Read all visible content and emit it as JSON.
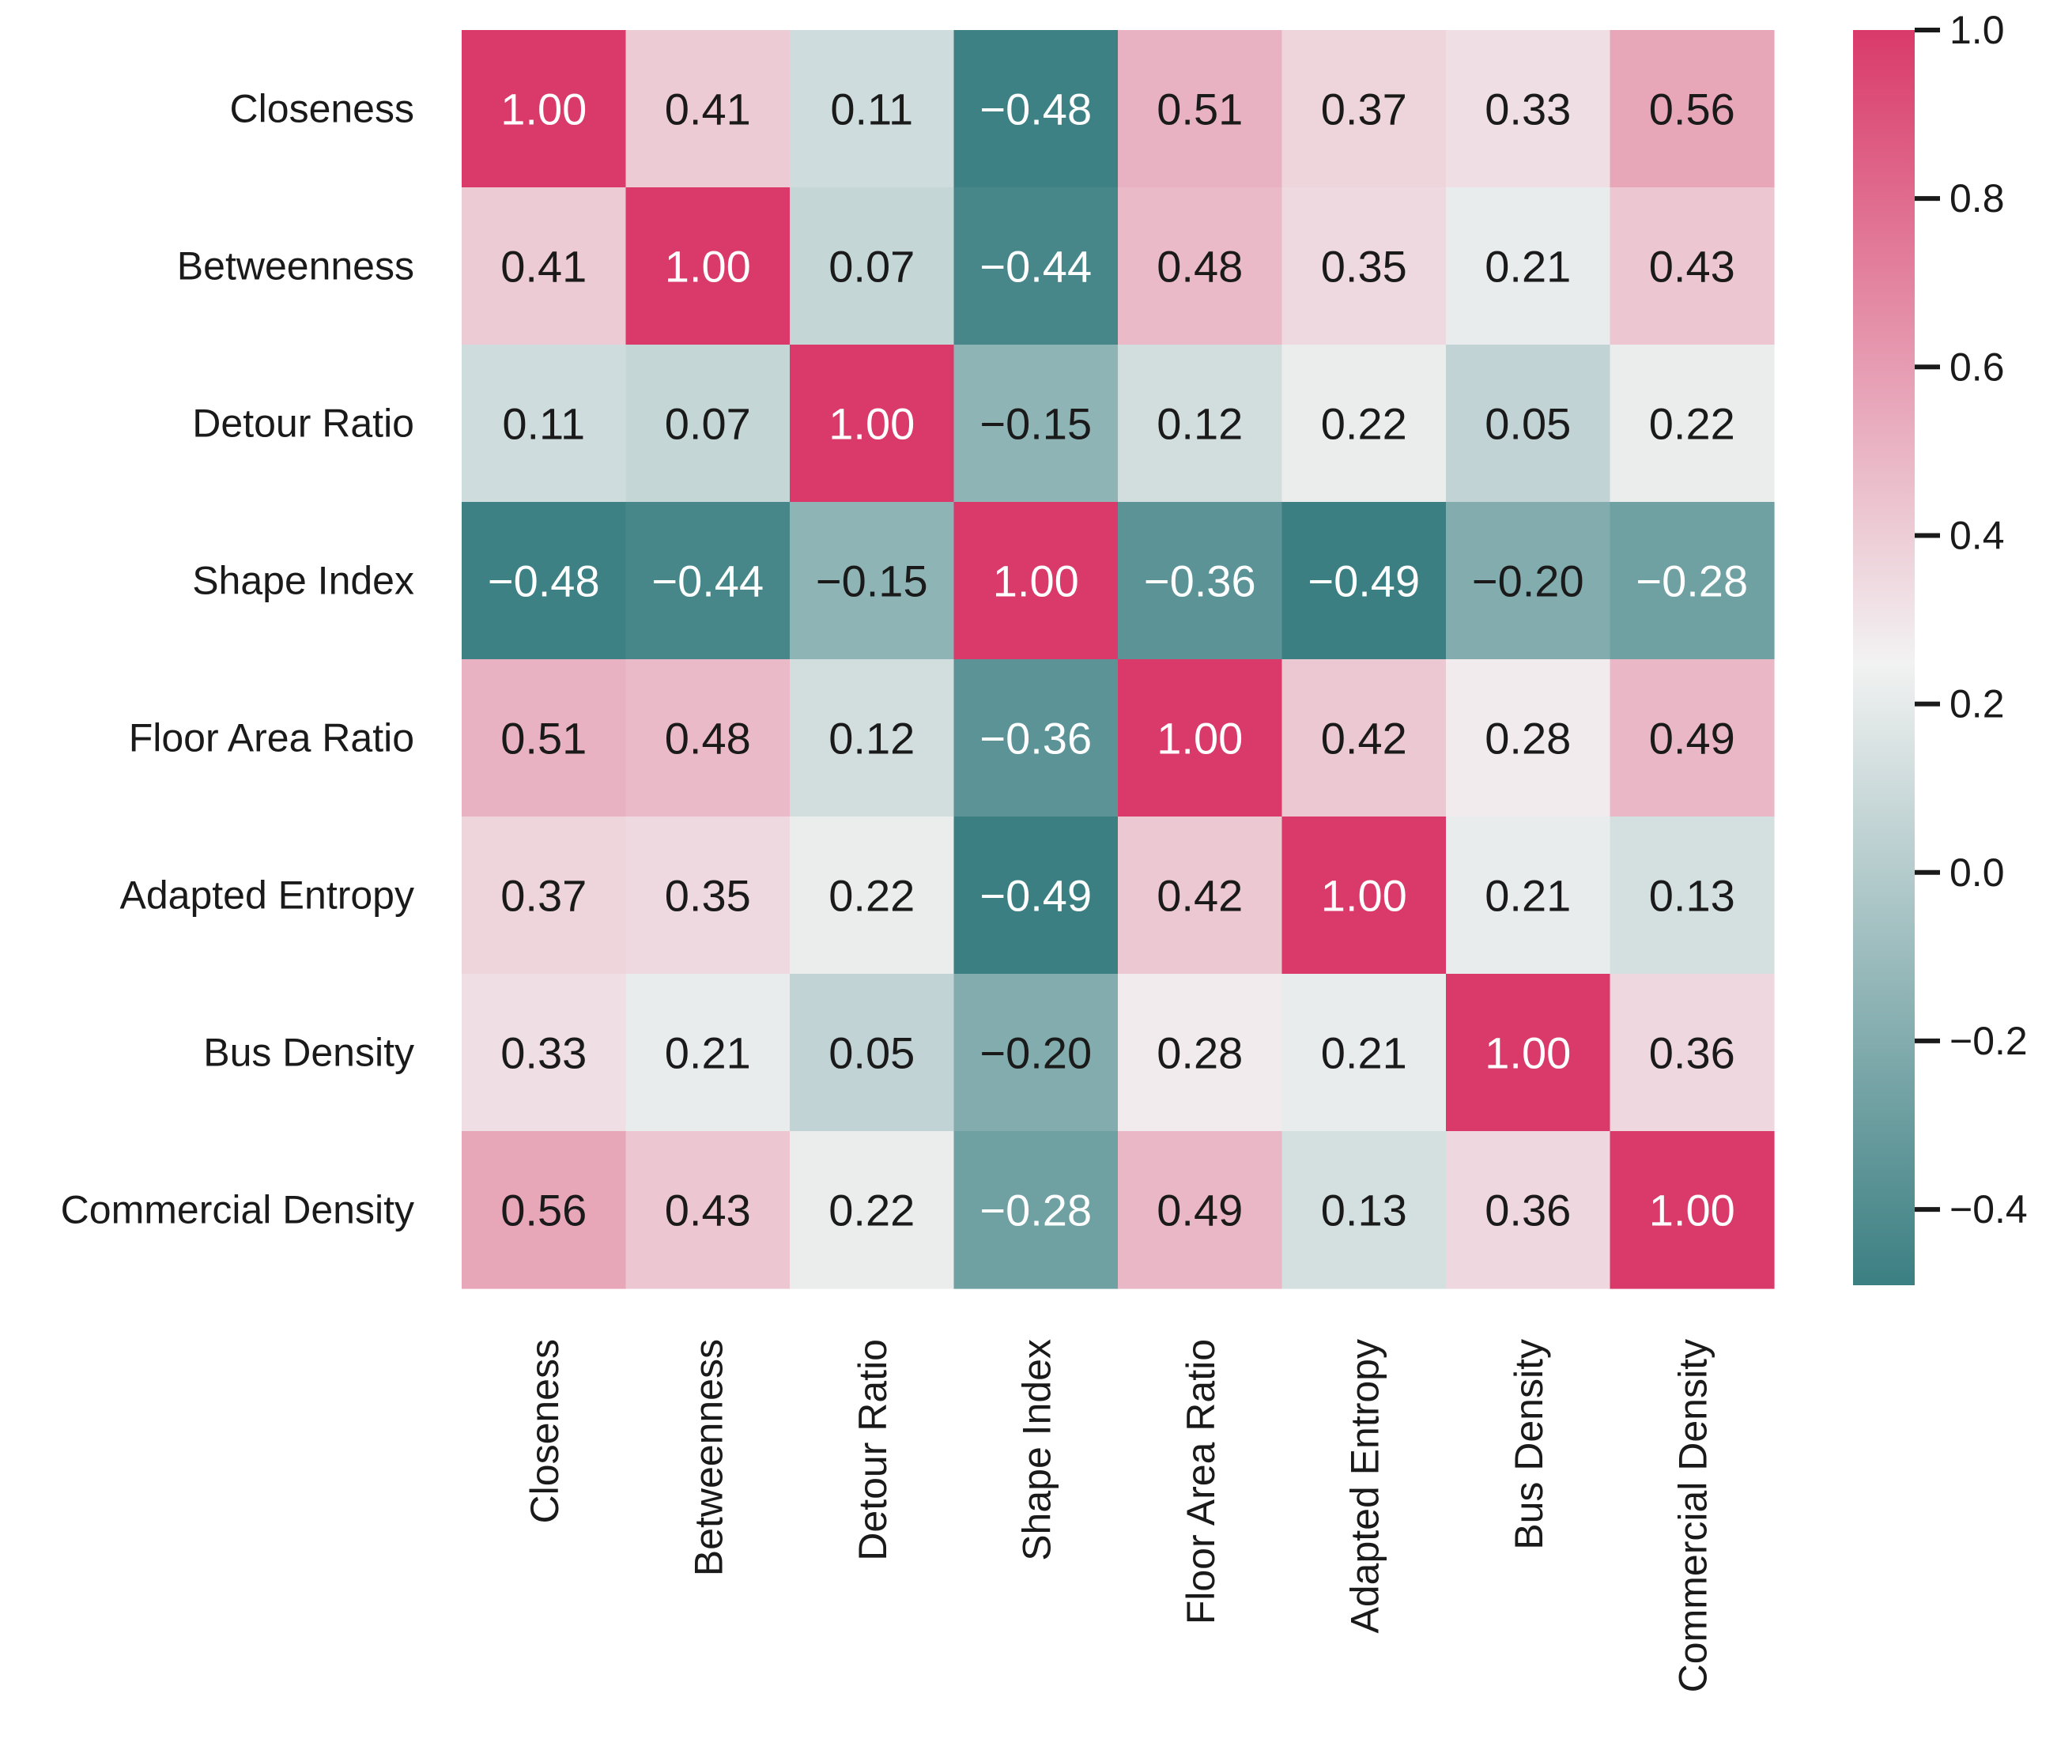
{
  "chart_data": {
    "type": "heatmap",
    "title": "",
    "xlabel": "",
    "ylabel": "",
    "labels": [
      "Closeness",
      "Betweenness",
      "Detour Ratio",
      "Shape Index",
      "Floor Area Ratio",
      "Adapted Entropy",
      "Bus Density",
      "Commercial Density"
    ],
    "matrix": [
      [
        1.0,
        0.41,
        0.11,
        -0.48,
        0.51,
        0.37,
        0.33,
        0.56
      ],
      [
        0.41,
        1.0,
        0.07,
        -0.44,
        0.48,
        0.35,
        0.21,
        0.43
      ],
      [
        0.11,
        0.07,
        1.0,
        -0.15,
        0.12,
        0.22,
        0.05,
        0.22
      ],
      [
        -0.48,
        -0.44,
        -0.15,
        1.0,
        -0.36,
        -0.49,
        -0.2,
        -0.28
      ],
      [
        0.51,
        0.48,
        0.12,
        -0.36,
        1.0,
        0.42,
        0.28,
        0.49
      ],
      [
        0.37,
        0.35,
        0.22,
        -0.49,
        0.42,
        1.0,
        0.21,
        0.13
      ],
      [
        0.33,
        0.21,
        0.05,
        -0.2,
        0.28,
        0.21,
        1.0,
        0.36
      ],
      [
        0.56,
        0.43,
        0.22,
        -0.28,
        0.49,
        0.13,
        0.36,
        1.0
      ]
    ],
    "colorbar": {
      "range": [
        -0.49,
        1.0
      ],
      "center": 0.25,
      "ticks": [
        1.0,
        0.8,
        0.6,
        0.4,
        0.2,
        0.0,
        -0.2,
        -0.4
      ],
      "tick_labels": [
        "1.0",
        "0.8",
        "0.6",
        "0.4",
        "0.2",
        "0.0",
        "−0.2",
        "−0.4"
      ]
    },
    "colors": {
      "low": "#3b7f82",
      "mid": "#f2f2f2",
      "high": "#d93a69"
    }
  }
}
